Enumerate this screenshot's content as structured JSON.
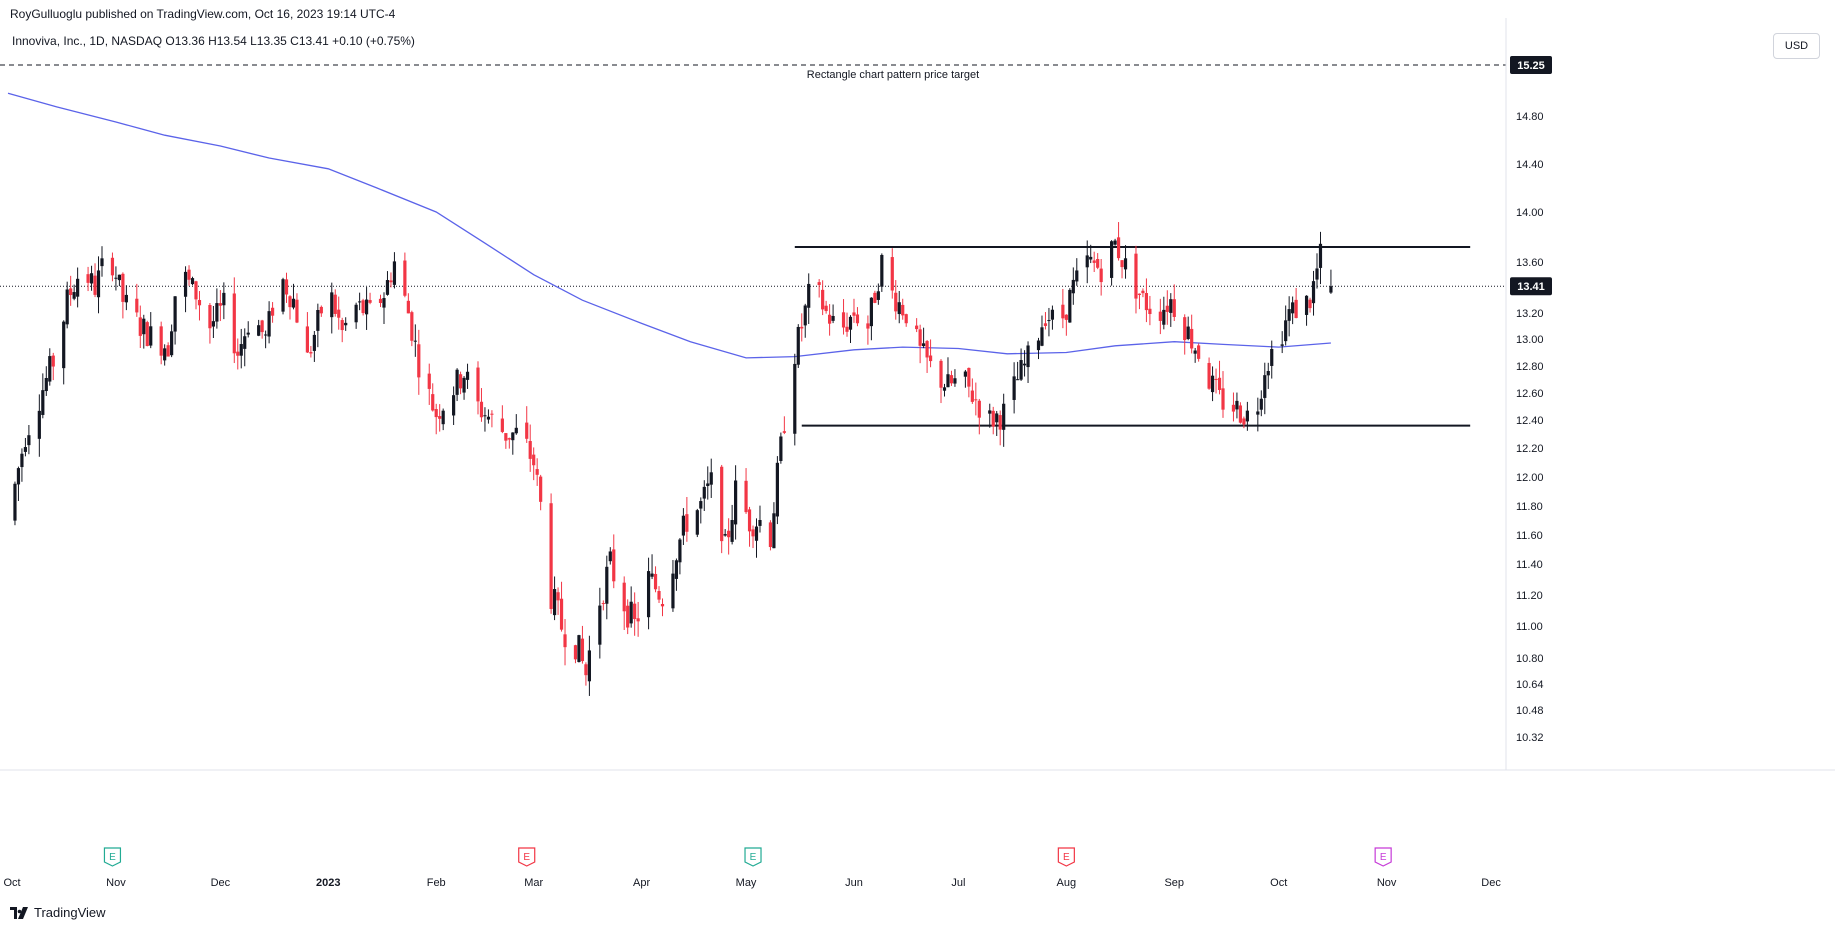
{
  "header": {
    "published_by": "RoyGulluoglu published on TradingView.com, Oct 16, 2023 19:14 UTC-4",
    "symbol_line": "Innoviva, Inc., 1D, NASDAQ  O13.36  H13.54  L13.35  C13.41  +0.10 (+0.75%)",
    "currency_button": "USD"
  },
  "footer": {
    "brand": "TradingView",
    "brand_icon": "tradingview-logo-icon"
  },
  "colors": {
    "up": "#131722",
    "down": "#f23645",
    "ma": "#5b63e9",
    "earnings_green": "#22ab94",
    "earnings_red": "#f23645",
    "earnings_purple": "#c63bd8"
  },
  "chart_data": {
    "type": "candlestick",
    "title": "Innoviva, Inc., 1D, NASDAQ",
    "ohlc_last": {
      "open": 13.36,
      "high": 13.54,
      "low": 13.35,
      "close": 13.41,
      "change": 0.1,
      "change_pct": "+0.75%"
    },
    "y_axis": {
      "ticks": [
        "15.25",
        "14.80",
        "14.40",
        "14.00",
        "13.60",
        "13.41",
        "13.20",
        "13.00",
        "12.80",
        "12.60",
        "12.40",
        "12.20",
        "12.00",
        "11.80",
        "11.60",
        "11.40",
        "11.20",
        "11.00",
        "10.80",
        "10.64",
        "10.48",
        "10.32"
      ],
      "range": [
        10.32,
        15.25
      ],
      "position": "right"
    },
    "x_axis": {
      "ticks": [
        "Oct",
        "Nov",
        "Dec",
        "2023",
        "Feb",
        "Mar",
        "Apr",
        "May",
        "Jun",
        "Jul",
        "Aug",
        "Sep",
        "Oct",
        "Nov",
        "Dec"
      ],
      "range": [
        "2022-10-01",
        "2023-12-05"
      ]
    },
    "last_price_label": "13.41",
    "target": {
      "value": 15.25,
      "label": "Rectangle chart pattern price target"
    },
    "rectangle_lines": [
      {
        "value": 13.72,
        "from": "2023-05-15",
        "to": "2023-11-25"
      },
      {
        "value": 12.36,
        "from": "2023-05-17",
        "to": "2023-11-25"
      }
    ],
    "moving_average": [
      [
        "2022-10-01",
        15.0
      ],
      [
        "2022-10-15",
        14.88
      ],
      [
        "2022-11-01",
        14.75
      ],
      [
        "2022-11-15",
        14.64
      ],
      [
        "2022-12-01",
        14.55
      ],
      [
        "2022-12-15",
        14.45
      ],
      [
        "2023-01-01",
        14.36
      ],
      [
        "2023-01-15",
        14.2
      ],
      [
        "2023-02-01",
        14.0
      ],
      [
        "2023-02-15",
        13.75
      ],
      [
        "2023-03-01",
        13.5
      ],
      [
        "2023-03-15",
        13.3
      ],
      [
        "2023-04-01",
        13.12
      ],
      [
        "2023-04-15",
        12.98
      ],
      [
        "2023-05-01",
        12.86
      ],
      [
        "2023-05-15",
        12.87
      ],
      [
        "2023-06-01",
        12.92
      ],
      [
        "2023-06-15",
        12.94
      ],
      [
        "2023-07-01",
        12.93
      ],
      [
        "2023-07-15",
        12.89
      ],
      [
        "2023-08-01",
        12.9
      ],
      [
        "2023-08-15",
        12.95
      ],
      [
        "2023-09-01",
        12.98
      ],
      [
        "2023-09-15",
        12.96
      ],
      [
        "2023-10-01",
        12.94
      ],
      [
        "2023-10-16",
        12.97
      ]
    ],
    "path": [
      [
        "2022-10-01",
        11.7
      ],
      [
        "2022-10-06",
        12.3
      ],
      [
        "2022-10-12",
        12.7
      ],
      [
        "2022-10-15",
        12.9
      ],
      [
        "2022-10-18",
        13.3
      ],
      [
        "2022-10-22",
        13.55
      ],
      [
        "2022-10-26",
        13.4
      ],
      [
        "2022-10-30",
        13.7
      ],
      [
        "2022-11-03",
        13.3
      ],
      [
        "2022-11-08",
        13.1
      ],
      [
        "2022-11-12",
        13.0
      ],
      [
        "2022-11-16",
        12.95
      ],
      [
        "2022-11-19",
        13.55
      ],
      [
        "2022-11-24",
        13.35
      ],
      [
        "2022-11-28",
        13.1
      ],
      [
        "2022-12-02",
        13.25
      ],
      [
        "2022-12-06",
        12.9
      ],
      [
        "2022-12-10",
        13.2
      ],
      [
        "2022-12-14",
        13.0
      ],
      [
        "2022-12-18",
        13.5
      ],
      [
        "2022-12-22",
        13.3
      ],
      [
        "2022-12-26",
        12.85
      ],
      [
        "2023-01-01",
        13.4
      ],
      [
        "2023-01-05",
        13.05
      ],
      [
        "2023-01-09",
        13.25
      ],
      [
        "2023-01-13",
        13.2
      ],
      [
        "2023-01-17",
        13.35
      ],
      [
        "2023-01-20",
        13.6
      ],
      [
        "2023-01-24",
        13.2
      ],
      [
        "2023-01-28",
        12.7
      ],
      [
        "2023-02-01",
        12.45
      ],
      [
        "2023-02-05",
        12.6
      ],
      [
        "2023-02-09",
        12.75
      ],
      [
        "2023-02-13",
        12.5
      ],
      [
        "2023-02-17",
        12.4
      ],
      [
        "2023-02-21",
        12.3
      ],
      [
        "2023-02-25",
        12.3
      ],
      [
        "2023-03-01",
        12.1
      ],
      [
        "2023-03-03",
        11.8
      ],
      [
        "2023-03-06",
        11.2
      ],
      [
        "2023-03-09",
        11.0
      ],
      [
        "2023-03-13",
        10.9
      ],
      [
        "2023-03-16",
        10.7
      ],
      [
        "2023-03-19",
        11.1
      ],
      [
        "2023-03-23",
        11.4
      ],
      [
        "2023-03-26",
        11.2
      ],
      [
        "2023-03-30",
        11.0
      ],
      [
        "2023-04-03",
        11.3
      ],
      [
        "2023-04-07",
        11.2
      ],
      [
        "2023-04-11",
        11.5
      ],
      [
        "2023-04-14",
        11.7
      ],
      [
        "2023-04-18",
        11.8
      ],
      [
        "2023-04-22",
        12.0
      ],
      [
        "2023-04-25",
        11.5
      ],
      [
        "2023-04-28",
        11.9
      ],
      [
        "2023-05-02",
        11.7
      ],
      [
        "2023-05-05",
        11.7
      ],
      [
        "2023-05-08",
        11.6
      ],
      [
        "2023-05-11",
        12.2
      ],
      [
        "2023-05-14",
        12.8
      ],
      [
        "2023-05-17",
        13.1
      ],
      [
        "2023-05-20",
        13.45
      ],
      [
        "2023-05-24",
        13.2
      ],
      [
        "2023-05-28",
        13.05
      ],
      [
        "2023-06-01",
        13.2
      ],
      [
        "2023-06-05",
        13.1
      ],
      [
        "2023-06-09",
        13.6
      ],
      [
        "2023-06-12",
        13.35
      ],
      [
        "2023-06-16",
        13.2
      ],
      [
        "2023-06-20",
        12.9
      ],
      [
        "2023-06-24",
        12.75
      ],
      [
        "2023-06-28",
        12.65
      ],
      [
        "2023-07-02",
        12.7
      ],
      [
        "2023-07-06",
        12.55
      ],
      [
        "2023-07-10",
        12.4
      ],
      [
        "2023-07-14",
        12.45
      ],
      [
        "2023-07-18",
        12.7
      ],
      [
        "2023-07-22",
        12.9
      ],
      [
        "2023-07-26",
        13.2
      ],
      [
        "2023-07-30",
        13.1
      ],
      [
        "2023-08-03",
        13.4
      ],
      [
        "2023-08-07",
        13.6
      ],
      [
        "2023-08-11",
        13.55
      ],
      [
        "2023-08-15",
        13.75
      ],
      [
        "2023-08-19",
        13.5
      ],
      [
        "2023-08-23",
        13.3
      ],
      [
        "2023-08-27",
        13.2
      ],
      [
        "2023-08-31",
        13.3
      ],
      [
        "2023-09-04",
        13.1
      ],
      [
        "2023-09-08",
        12.9
      ],
      [
        "2023-09-11",
        12.7
      ],
      [
        "2023-09-14",
        12.55
      ],
      [
        "2023-09-18",
        12.5
      ],
      [
        "2023-09-21",
        12.45
      ],
      [
        "2023-09-24",
        12.4
      ],
      [
        "2023-09-27",
        12.8
      ],
      [
        "2023-10-01",
        13.0
      ],
      [
        "2023-10-04",
        13.2
      ],
      [
        "2023-10-07",
        13.25
      ],
      [
        "2023-10-10",
        13.3
      ],
      [
        "2023-10-13",
        13.65
      ],
      [
        "2023-10-16",
        13.41
      ]
    ],
    "events": [
      {
        "label": "E",
        "date": "2022-10-31",
        "kind": "green"
      },
      {
        "label": "E",
        "date": "2023-02-27",
        "kind": "red"
      },
      {
        "label": "E",
        "date": "2023-05-03",
        "kind": "green"
      },
      {
        "label": "E",
        "date": "2023-08-01",
        "kind": "red"
      },
      {
        "label": "E",
        "date": "2023-10-31",
        "kind": "purple"
      }
    ]
  }
}
